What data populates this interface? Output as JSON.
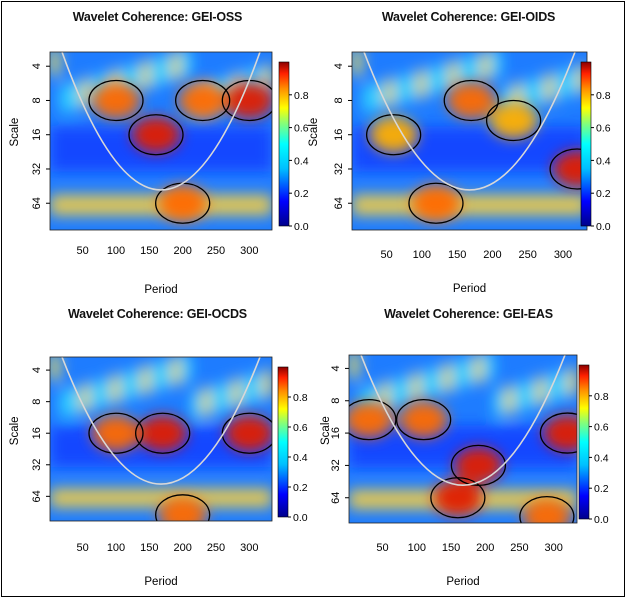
{
  "chart_data": [
    {
      "type": "heatmap",
      "title": "Wavelet Coherence: GEI-OSS",
      "xlabel": "Period",
      "ylabel": "Scale",
      "x_ticks": [
        "50",
        "100",
        "150",
        "200",
        "250",
        "300"
      ],
      "y_ticks": [
        "4",
        "8",
        "16",
        "32",
        "64"
      ],
      "colorbar_ticks": [
        "0.0",
        "0.2",
        "0.4",
        "0.6",
        "0.8"
      ],
      "xlim": [
        1,
        334
      ],
      "zlim": [
        0,
        1
      ],
      "hotspots": [
        {
          "period": 160,
          "scale": 16,
          "coherence": 0.95
        },
        {
          "period": 300,
          "scale": 8,
          "coherence": 0.9
        },
        {
          "period": 200,
          "scale": 64,
          "coherence": 0.85
        },
        {
          "period": 100,
          "scale": 8,
          "coherence": 0.8
        },
        {
          "period": 230,
          "scale": 8,
          "coherence": 0.8
        }
      ]
    },
    {
      "type": "heatmap",
      "title": "Wavelet Coherence: GEI-OIDS",
      "xlabel": "Period",
      "ylabel": "Scale",
      "x_ticks": [
        "50",
        "100",
        "150",
        "200",
        "250",
        "300"
      ],
      "y_ticks": [
        "4",
        "8",
        "16",
        "32",
        "64"
      ],
      "colorbar_ticks": [
        "0.0",
        "0.2",
        "0.4",
        "0.6",
        "0.8"
      ],
      "xlim": [
        1,
        334
      ],
      "zlim": [
        0,
        1
      ],
      "hotspots": [
        {
          "period": 320,
          "scale": 32,
          "coherence": 0.95
        },
        {
          "period": 120,
          "scale": 64,
          "coherence": 0.8
        },
        {
          "period": 170,
          "scale": 8,
          "coherence": 0.85
        },
        {
          "period": 60,
          "scale": 16,
          "coherence": 0.75
        },
        {
          "period": 230,
          "scale": 12,
          "coherence": 0.75
        }
      ]
    },
    {
      "type": "heatmap",
      "title": "Wavelet Coherence: GEI-OCDS",
      "xlabel": "Period",
      "ylabel": "Scale",
      "x_ticks": [
        "50",
        "100",
        "150",
        "200",
        "250",
        "300"
      ],
      "y_ticks": [
        "4",
        "8",
        "16",
        "32",
        "64"
      ],
      "colorbar_ticks": [
        "0.0",
        "0.2",
        "0.4",
        "0.6",
        "0.8"
      ],
      "xlim": [
        1,
        334
      ],
      "zlim": [
        0,
        1
      ],
      "hotspots": [
        {
          "period": 170,
          "scale": 16,
          "coherence": 0.9
        },
        {
          "period": 300,
          "scale": 16,
          "coherence": 0.95
        },
        {
          "period": 100,
          "scale": 16,
          "coherence": 0.8
        },
        {
          "period": 200,
          "scale": 96,
          "coherence": 0.8
        }
      ]
    },
    {
      "type": "heatmap",
      "title": "Wavelet Coherence: GEI-EAS",
      "xlabel": "Period",
      "ylabel": "Scale",
      "x_ticks": [
        "50",
        "100",
        "150",
        "200",
        "250",
        "300"
      ],
      "y_ticks": [
        "4",
        "8",
        "16",
        "32",
        "64"
      ],
      "colorbar_ticks": [
        "0.0",
        "0.2",
        "0.4",
        "0.6",
        "0.8"
      ],
      "xlim": [
        1,
        334
      ],
      "zlim": [
        0,
        1
      ],
      "hotspots": [
        {
          "period": 190,
          "scale": 32,
          "coherence": 0.95
        },
        {
          "period": 160,
          "scale": 64,
          "coherence": 0.95
        },
        {
          "period": 320,
          "scale": 16,
          "coherence": 0.9
        },
        {
          "period": 30,
          "scale": 12,
          "coherence": 0.85
        },
        {
          "period": 110,
          "scale": 12,
          "coherence": 0.8
        },
        {
          "period": 290,
          "scale": 96,
          "coherence": 0.85
        }
      ]
    }
  ]
}
